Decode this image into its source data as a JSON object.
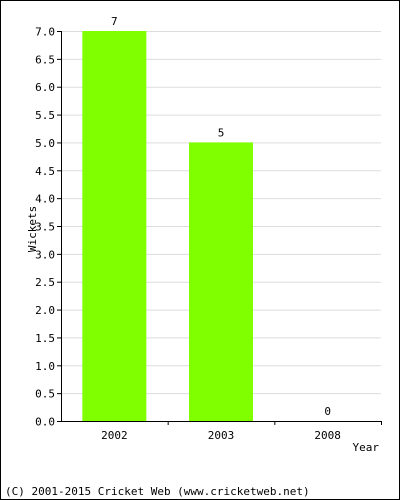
{
  "chart_data": {
    "type": "bar",
    "categories": [
      "2002",
      "2003",
      "2008"
    ],
    "values": [
      7,
      5,
      0
    ],
    "data_labels": [
      "7",
      "5",
      "0"
    ],
    "xlabel": "Year",
    "ylabel": "Wickets",
    "ylim": [
      0,
      7
    ],
    "yticks": [
      "0.0",
      "0.5",
      "1.0",
      "1.5",
      "2.0",
      "2.5",
      "3.0",
      "3.5",
      "4.0",
      "4.5",
      "5.0",
      "5.5",
      "6.0",
      "6.5",
      "7.0"
    ],
    "grid": true,
    "bar_color": "#80ff00",
    "grid_color": "#dddddd"
  },
  "footer": "(C) 2001-2015 Cricket Web (www.cricketweb.net)"
}
